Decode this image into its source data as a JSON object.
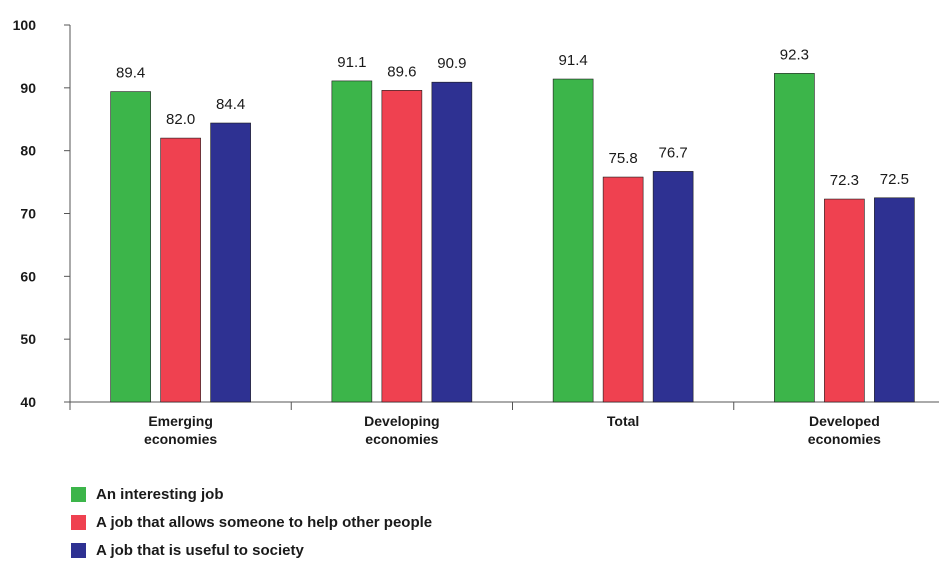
{
  "chart_data": {
    "type": "bar",
    "categories": [
      [
        "Emerging",
        "economies"
      ],
      [
        "Developing",
        "economies"
      ],
      [
        "Total"
      ],
      [
        "Developed",
        "economies"
      ]
    ],
    "series": [
      {
        "name": "An interesting job",
        "color": "#3cb54a",
        "values": [
          89.4,
          91.1,
          91.4,
          92.3
        ]
      },
      {
        "name": "A job that allows someone to help other people",
        "color": "#ef4150",
        "values": [
          82.0,
          89.6,
          75.8,
          72.3
        ]
      },
      {
        "name": "A job that is useful to society",
        "color": "#2e3192",
        "values": [
          84.4,
          90.9,
          76.7,
          72.5
        ]
      }
    ],
    "data_labels": [
      [
        "89.4",
        "91.1",
        "91.4",
        "92.3"
      ],
      [
        "82.0",
        "89.6",
        "75.8",
        "72.3"
      ],
      [
        "84.4",
        "90.9",
        "76.7",
        "72.5"
      ]
    ],
    "y_ticks": [
      "40",
      "50",
      "60",
      "70",
      "80",
      "90",
      "100"
    ],
    "ylim": [
      40,
      100
    ],
    "grid": false,
    "legend_position": "bottom-left",
    "title": "",
    "xlabel": "",
    "ylabel": ""
  }
}
